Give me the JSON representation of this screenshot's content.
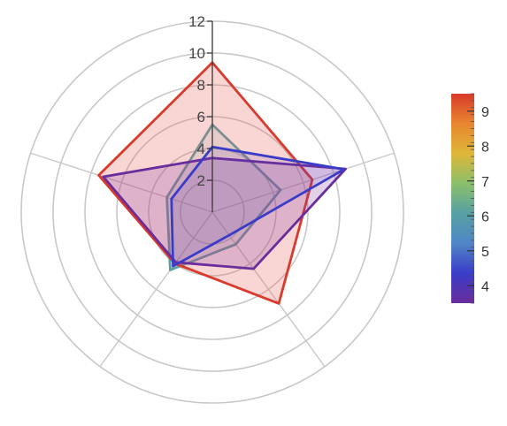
{
  "chart_data": {
    "type": "radar",
    "axes": 5,
    "rmax": 12,
    "rings": [
      2,
      4,
      6,
      8,
      10,
      12
    ],
    "tick_labels": [
      "2",
      "4",
      "6",
      "8",
      "10",
      "12"
    ],
    "grid": true,
    "series": [
      {
        "color_value": 5.5,
        "stroke": "#58a0a4",
        "fill": "#58a0a4",
        "fill_opacity": 0.14,
        "values": [
          5.5,
          4.5,
          2.5,
          4.5,
          3.0
        ]
      },
      {
        "color_value": 9.5,
        "stroke": "#d93a2c",
        "fill": "#e8615a",
        "fill_opacity": 0.26,
        "values": [
          9.4,
          6.6,
          7.1,
          4.0,
          7.5
        ]
      },
      {
        "color_value": 3.5,
        "stroke": "#6a2d9b",
        "fill": "#8a3fa6",
        "fill_opacity": 0.24,
        "values": [
          3.4,
          8.8,
          4.4,
          3.9,
          7.2
        ]
      },
      {
        "color_value": 4.0,
        "stroke": "#3a3cc8",
        "fill": "#5a3db8",
        "fill_opacity": 0.14,
        "values": [
          4.1,
          8.7,
          1.8,
          4.2,
          2.7
        ]
      }
    ],
    "colorbar": {
      "min": 3.5,
      "max": 9.5,
      "ticks": [
        "4",
        "5",
        "6",
        "7",
        "8",
        "9"
      ],
      "tick_values": [
        4,
        5,
        6,
        7,
        8,
        9
      ],
      "stops": [
        "#6a2d9b",
        "#3a3cc8",
        "#4f86c6",
        "#58a0a4",
        "#8ac06a",
        "#dfb63a",
        "#e8862e",
        "#d93a2c"
      ]
    }
  }
}
